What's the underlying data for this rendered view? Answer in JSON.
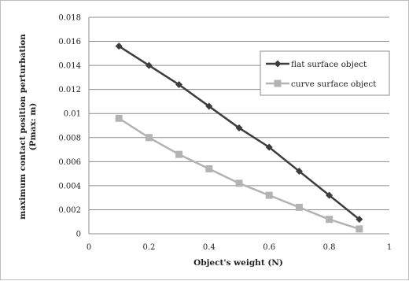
{
  "chart_data": {
    "type": "line",
    "title": "",
    "xlabel": "Object's weight (N)",
    "ylabel_line1": "maximum contact position perturbation",
    "ylabel_line2": "(Pmax: m)",
    "xlim": [
      0,
      1
    ],
    "ylim": [
      0,
      0.018
    ],
    "x_ticks": [
      0,
      0.2,
      0.4,
      0.6,
      0.8,
      1
    ],
    "x_tick_labels": [
      "0",
      "0.2",
      "0.4",
      "0.6",
      "0.8",
      "1"
    ],
    "y_ticks": [
      0,
      0.002,
      0.004,
      0.006,
      0.008,
      0.01,
      0.012,
      0.014,
      0.016,
      0.018
    ],
    "y_tick_labels": [
      "0",
      "0.002",
      "0.004",
      "0.006",
      "0.008",
      "0.01",
      "0.012",
      "0.014",
      "0.016",
      "0.018"
    ],
    "grid": "horizontal",
    "legend_position": "right",
    "x": [
      0.1,
      0.2,
      0.3,
      0.4,
      0.5,
      0.6,
      0.7,
      0.8,
      0.9
    ],
    "series": [
      {
        "name": "flat surface object",
        "marker": "diamond",
        "color": "#3d3d3d",
        "values": [
          0.0156,
          0.014,
          0.0124,
          0.0106,
          0.0088,
          0.0072,
          0.0052,
          0.0032,
          0.0012
        ]
      },
      {
        "name": "curve surface object",
        "marker": "square",
        "color": "#b3b3b3",
        "values": [
          0.0096,
          0.008,
          0.0066,
          0.0054,
          0.0042,
          0.0032,
          0.0022,
          0.0012,
          0.0004
        ]
      }
    ]
  }
}
